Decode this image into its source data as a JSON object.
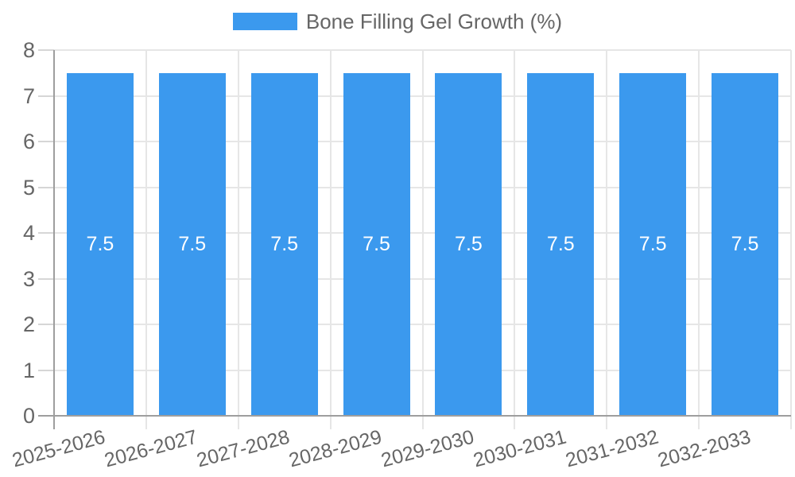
{
  "legend": {
    "label": "Bone Filling Gel Growth (%)"
  },
  "chart_data": {
    "type": "bar",
    "title": "",
    "xlabel": "",
    "ylabel": "",
    "categories": [
      "2025-2026",
      "2026-2027",
      "2027-2028",
      "2028-2029",
      "2029-2030",
      "2030-2031",
      "2031-2032",
      "2032-2033"
    ],
    "series": [
      {
        "name": "Bone Filling Gel Growth (%)",
        "values": [
          7.5,
          7.5,
          7.5,
          7.5,
          7.5,
          7.5,
          7.5,
          7.5
        ],
        "bar_labels": [
          "7.5",
          "7.5",
          "7.5",
          "7.5",
          "7.5",
          "7.5",
          "7.5",
          "7.5"
        ]
      }
    ],
    "ylim": [
      0,
      8
    ],
    "yticks": [
      0,
      1,
      2,
      3,
      4,
      5,
      6,
      7,
      8
    ],
    "grid": true,
    "legend_position": "top",
    "colors": {
      "bar": "#3B99EE",
      "grid": "#E6E6E6",
      "axis": "#9E9E9E",
      "tick_text": "#666666",
      "legend_text": "#666666",
      "bar_label": "#FFFFFF"
    }
  }
}
